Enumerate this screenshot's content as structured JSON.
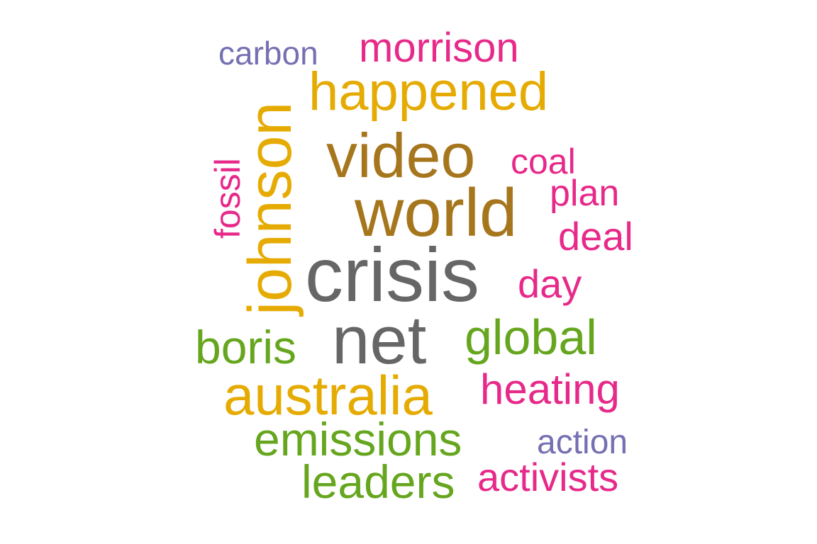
{
  "chart_data": {
    "type": "wordcloud",
    "colors": {
      "gray": "#666666",
      "brown": "#A6761D",
      "gold": "#E6AB02",
      "green": "#66A61E",
      "magenta": "#E7298A",
      "purple": "#7570B3"
    },
    "words": [
      {
        "text": "crisis",
        "color": "gray"
      },
      {
        "text": "net",
        "color": "gray"
      },
      {
        "text": "world",
        "color": "brown"
      },
      {
        "text": "video",
        "color": "brown"
      },
      {
        "text": "johnson",
        "color": "gold"
      },
      {
        "text": "happened",
        "color": "gold"
      },
      {
        "text": "australia",
        "color": "gold"
      },
      {
        "text": "global",
        "color": "green"
      },
      {
        "text": "boris",
        "color": "green"
      },
      {
        "text": "emissions",
        "color": "green"
      },
      {
        "text": "leaders",
        "color": "green"
      },
      {
        "text": "heating",
        "color": "magenta"
      },
      {
        "text": "activists",
        "color": "magenta"
      },
      {
        "text": "morrison",
        "color": "magenta"
      },
      {
        "text": "deal",
        "color": "magenta"
      },
      {
        "text": "day",
        "color": "magenta"
      },
      {
        "text": "plan",
        "color": "magenta"
      },
      {
        "text": "coal",
        "color": "magenta"
      },
      {
        "text": "fossil",
        "color": "magenta"
      },
      {
        "text": "carbon",
        "color": "purple"
      },
      {
        "text": "action",
        "color": "purple"
      }
    ]
  }
}
